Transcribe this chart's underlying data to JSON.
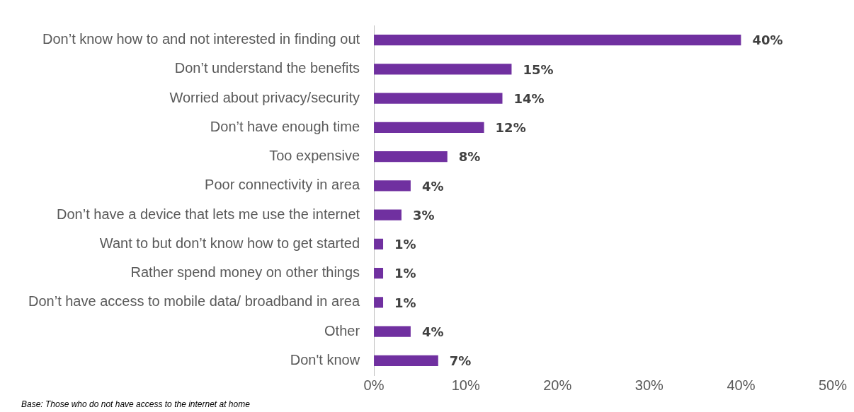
{
  "chart_data": {
    "type": "bar",
    "orientation": "horizontal",
    "categories": [
      "Don’t know how to and not interested in finding out",
      "Don’t understand the benefits",
      "Worried about privacy/security",
      "Don’t have enough time",
      "Too expensive",
      "Poor connectivity in area",
      "Don’t have a device that lets me use the internet",
      "Want to but don’t know how to get started",
      "Rather spend money on other things",
      "Don’t have access to mobile data/ broadband in area",
      "Other",
      "Don't know"
    ],
    "values": [
      40,
      15,
      14,
      12,
      8,
      4,
      3,
      1,
      1,
      1,
      4,
      7
    ],
    "value_labels": [
      "40%",
      "15%",
      "14%",
      "12%",
      "8%",
      "4%",
      "3%",
      "1%",
      "1%",
      "1%",
      "4%",
      "7%"
    ],
    "color": "#7030a0",
    "xlim": [
      0,
      50
    ],
    "xticks": [
      {
        "value": 0,
        "label": "0%"
      },
      {
        "value": 10,
        "label": "10%"
      },
      {
        "value": 20,
        "label": "20%"
      },
      {
        "value": 30,
        "label": "30%"
      },
      {
        "value": 40,
        "label": "40%"
      },
      {
        "value": 50,
        "label": "50%"
      }
    ],
    "grid": false,
    "legend": false,
    "annotations": [
      "Base: Those who do not have access to the internet at home"
    ]
  }
}
